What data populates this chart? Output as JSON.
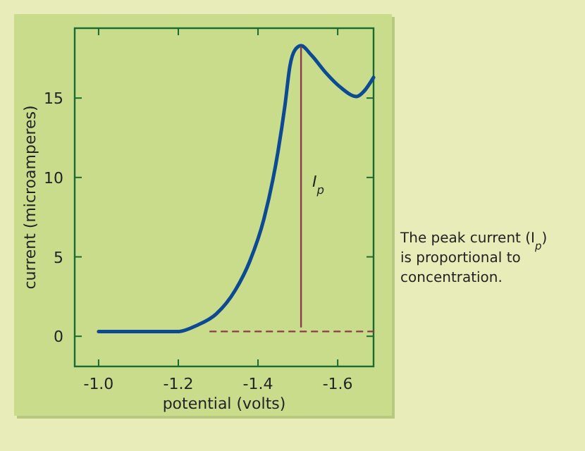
{
  "chart_data": {
    "type": "line",
    "xlabel": "potential (volts)",
    "ylabel": "current (microamperes)",
    "xlim": [
      -0.94,
      -1.69
    ],
    "xticks": [
      {
        "value": -1.0,
        "label": "-1.0"
      },
      {
        "value": -1.2,
        "label": "-1.2"
      },
      {
        "value": -1.4,
        "label": "-1.4"
      },
      {
        "value": -1.6,
        "label": "-1.6"
      }
    ],
    "ylim": [
      -1.9,
      19.4
    ],
    "yticks": [
      0,
      5,
      10,
      15
    ],
    "grid": false,
    "series": [
      {
        "color": "#0d4a94",
        "x": [
          -1.0,
          -1.2,
          -1.248,
          -1.295,
          -1.343,
          -1.379,
          -1.415,
          -1.45,
          -1.468,
          -1.48,
          -1.492,
          -1.508,
          -1.534,
          -1.57,
          -1.606,
          -1.648,
          -1.665,
          -1.69
        ],
        "values": [
          0.3,
          0.3,
          0.7,
          1.4,
          2.9,
          4.7,
          7.4,
          11.6,
          14.6,
          17,
          18,
          18.3,
          17.7,
          16.6,
          15.7,
          15.1,
          15.4,
          16.3
        ]
      },
      {
        "color": "#8b3a4a",
        "x": [
          -1.508,
          -1.508
        ],
        "values": [
          0.6,
          18.2
        ]
      },
      {
        "color": "#8b3a4a",
        "line_style": "dashed",
        "x": [
          -1.28,
          -1.69
        ],
        "values": [
          0.3,
          0.3
        ]
      }
    ],
    "annotations": [
      "I$_{p}$",
      "The peak current (I$_{p}$) is proportional to concentration."
    ]
  }
}
